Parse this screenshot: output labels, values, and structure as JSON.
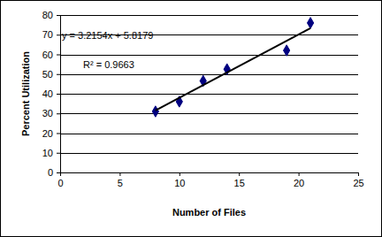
{
  "chart_data": {
    "type": "scatter",
    "x_label": "Number of Files",
    "y_label": "Percent Utilization",
    "annotations": [
      "y = 3.2154x + 5.8179",
      "R² = 0.9663"
    ],
    "series": [
      {
        "type": "scatter",
        "color": "#000080",
        "marker": "diamond",
        "x": [
          8,
          10,
          12,
          14,
          19,
          21
        ],
        "values": [
          31,
          36,
          46.5,
          52.5,
          62,
          76
        ]
      },
      {
        "type": "line",
        "color": "#000000",
        "line_style": "solid",
        "x": [
          8,
          21
        ],
        "values": [
          31.5,
          73.3
        ]
      }
    ],
    "xlim": [
      0,
      25
    ],
    "xticks": [
      0,
      5,
      10,
      15,
      20,
      25
    ],
    "ylim": [
      0,
      80
    ],
    "yticks": [
      0,
      10,
      20,
      30,
      40,
      50,
      60,
      70,
      80
    ],
    "grid": true
  }
}
